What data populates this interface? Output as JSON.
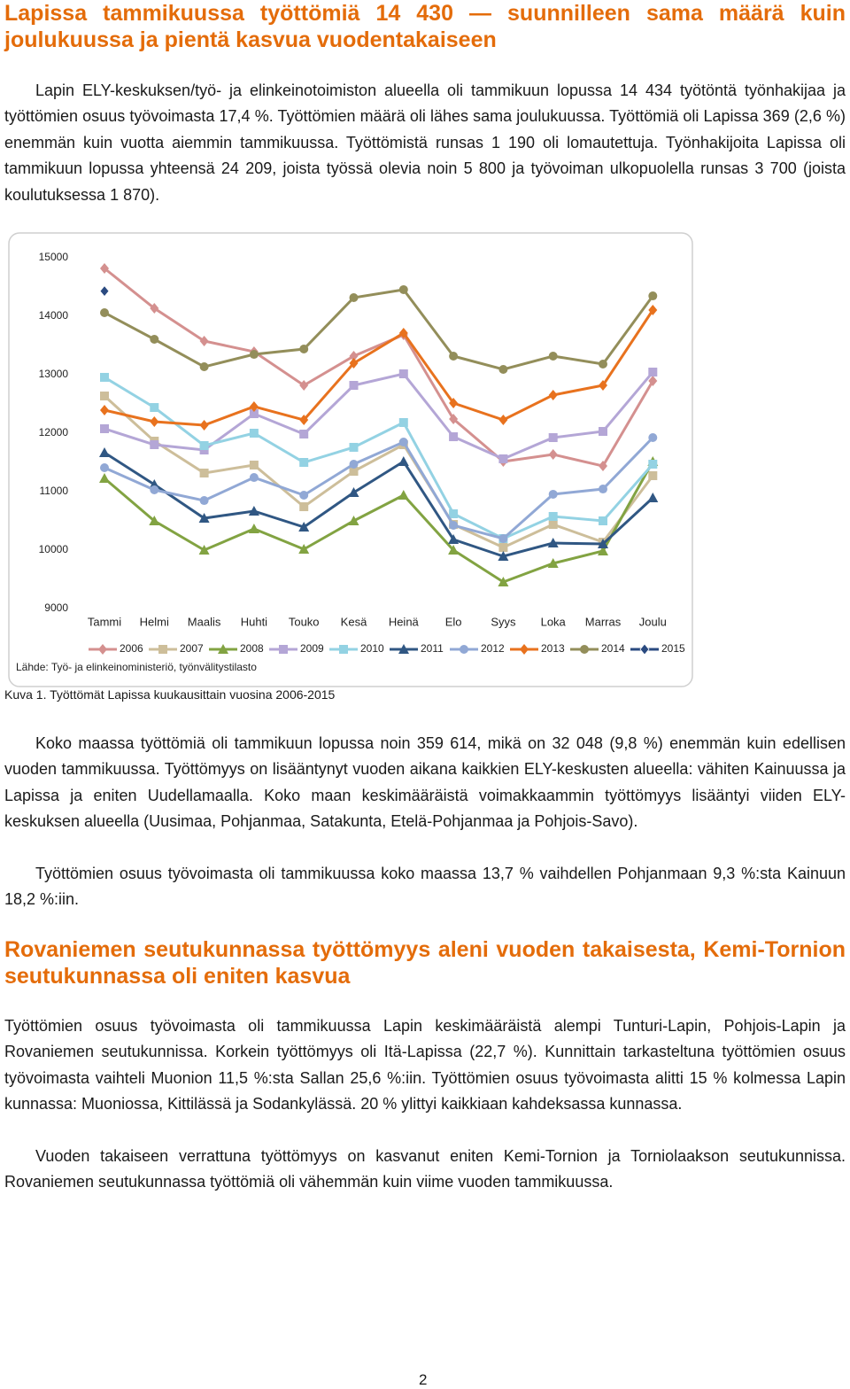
{
  "heading": "Lapissa tammikuussa työttömiä 14 430 — suunnilleen sama määrä kuin joulukuussa ja pientä kasvua vuodentakaiseen",
  "paragraph_1": "Lapin ELY-keskuksen/työ- ja elinkeinotoimiston alueella oli tammikuun lopussa 14 434 työtöntä työnhakijaa ja työttömien osuus työvoimasta 17,4 %. Työttömien määrä oli lähes sama joulukuussa. Työttömiä oli Lapissa 369 (2,6 %) enemmän kuin vuotta aiemmin tammikuussa. Työttömistä runsas 1 190 oli lomautettuja. Työnhakijoita Lapissa oli tammikuun lopussa yhteensä 24 209, joista työssä olevia noin 5 800 ja työvoiman ulkopuolella runsas 3 700 (joista koulutuksessa 1 870).",
  "chart_data": {
    "type": "line",
    "categories": [
      "Tammi",
      "Helmi",
      "Maalis",
      "Huhti",
      "Touko",
      "Kesä",
      "Heinä",
      "Elo",
      "Syys",
      "Loka",
      "Marras",
      "Joulu"
    ],
    "ylim": [
      9000,
      15000
    ],
    "yticks": [
      9000,
      10000,
      11000,
      12000,
      13000,
      14000,
      15000
    ],
    "source": "Lähde: Työ- ja elinkeinoministeriö, työnvälitystilasto",
    "series": [
      {
        "name": "2006",
        "color": "#d4908f",
        "marker": "diamond",
        "values": [
          14818,
          14136,
          13576,
          13394,
          12818,
          13318,
          13682,
          12242,
          11515,
          11636,
          11439,
          12894
        ]
      },
      {
        "name": "2007",
        "color": "#cdbe9a",
        "marker": "square",
        "values": [
          12636,
          11864,
          11318,
          11455,
          10742,
          11348,
          11803,
          10439,
          10045,
          10439,
          10136,
          11273
        ]
      },
      {
        "name": "2008",
        "color": "#82a342",
        "marker": "triangle",
        "values": [
          11227,
          10500,
          10000,
          10364,
          10015,
          10500,
          10939,
          10000,
          9455,
          9773,
          9985,
          11515
        ]
      },
      {
        "name": "2009",
        "color": "#b4a6d6",
        "marker": "square",
        "values": [
          12076,
          11803,
          11712,
          12333,
          11985,
          12818,
          13015,
          11939,
          11561,
          11924,
          12030,
          13045
        ]
      },
      {
        "name": "2010",
        "color": "#93d2e3",
        "marker": "square",
        "values": [
          12955,
          12439,
          11788,
          12000,
          11500,
          11758,
          12182,
          10621,
          10197,
          10576,
          10500,
          11470
        ]
      },
      {
        "name": "2011",
        "color": "#305783",
        "marker": "triangle",
        "values": [
          11667,
          11121,
          10545,
          10667,
          10394,
          10985,
          11515,
          10182,
          9894,
          10121,
          10106,
          10894
        ]
      },
      {
        "name": "2012",
        "color": "#91a8d5",
        "marker": "circle",
        "values": [
          11409,
          11030,
          10848,
          11242,
          10939,
          11470,
          11848,
          10424,
          10197,
          10955,
          11045,
          11924
        ]
      },
      {
        "name": "2013",
        "color": "#e8721e",
        "marker": "diamond",
        "values": [
          12394,
          12197,
          12136,
          12455,
          12227,
          13197,
          13712,
          12515,
          12227,
          12652,
          12818,
          14106
        ]
      },
      {
        "name": "2014",
        "color": "#938e5a",
        "marker": "circle",
        "values": [
          14061,
          13606,
          13136,
          13348,
          13439,
          14318,
          14455,
          13318,
          13091,
          13318,
          13182,
          14348
        ]
      },
      {
        "name": "2015",
        "color": "#2a4a80",
        "marker": "diamond",
        "values": [
          14430,
          null,
          null,
          null,
          null,
          null,
          null,
          null,
          null,
          null,
          null,
          null
        ]
      }
    ]
  },
  "caption": "Kuva 1. Työttömät Lapissa kuukausittain vuosina 2006-2015",
  "paragraph_2": "Koko maassa työttömiä oli tammikuun lopussa noin 359 614, mikä on 32 048 (9,8 %) enemmän kuin edellisen vuoden tammikuussa. Työttömyys on lisääntynyt vuoden aikana kaikkien ELY-keskusten alueella: vähiten Kainuussa ja Lapissa ja eniten Uudellamaalla. Koko maan keskimääräistä voimakkaammin työttömyys lisääntyi viiden ELY-keskuksen alueella (Uusimaa, Pohjanmaa, Satakunta, Etelä-Pohjanmaa ja Pohjois-Savo).",
  "paragraph_3": "Työttömien osuus työvoimasta oli tammikuussa koko maassa 13,7 % vaihdellen Pohjanmaan 9,3 %:sta Kainuun 18,2 %:iin.",
  "heading_2": "Rovaniemen seutukunnassa työttömyys aleni vuoden takaisesta, Kemi-Tornion seutukunnassa oli eniten kasvua",
  "paragraph_4": "Työttömien osuus työvoimasta oli tammikuussa Lapin keskimääräistä alempi Tunturi-Lapin, Pohjois-Lapin ja Rovaniemen seutukunnissa. Korkein työttömyys oli Itä-Lapissa (22,7 %). Kunnittain tarkasteltuna työttömien osuus työvoimasta vaihteli Muonion 11,5 %:sta Sallan 25,6 %:iin. Työttömien osuus työvoimasta alitti 15 % kolmessa Lapin kunnassa: Muoniossa, Kittilässä ja Sodankylässä. 20 % ylittyi kaikkiaan kahdeksassa kunnassa.",
  "paragraph_5": "Vuoden takaiseen verrattuna työttömyys on kasvanut eniten Kemi-Tornion ja Torniolaakson seutukunnissa. Rovaniemen seutukunnassa työttömiä oli vähemmän kuin viime vuoden tammikuussa.",
  "page_number": "2"
}
